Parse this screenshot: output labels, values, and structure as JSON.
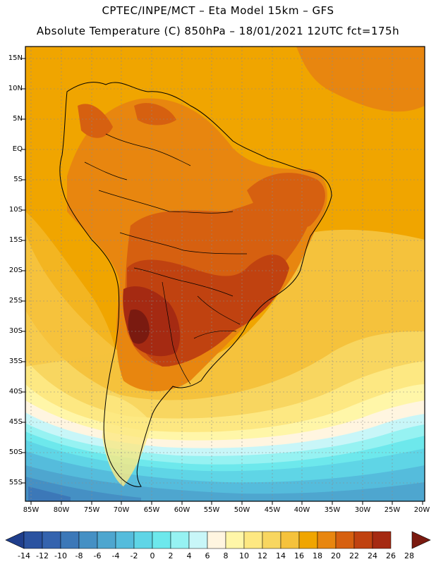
{
  "header": {
    "line1": "CPTEC/INPE/MCT –  Eta Model 15km – GFS",
    "line2": "Absolute Temperature (C) 850hPa – 18/01/2021 12UTC fct=175h"
  },
  "map": {
    "lat_labels": [
      "15N",
      "10N",
      "5N",
      "EQ",
      "5S",
      "10S",
      "15S",
      "20S",
      "25S",
      "30S",
      "35S",
      "40S",
      "45S",
      "50S",
      "55S"
    ],
    "lon_labels": [
      "85W",
      "80W",
      "75W",
      "70W",
      "65W",
      "60W",
      "55W",
      "50W",
      "45W",
      "40W",
      "35W",
      "30W",
      "25W",
      "20W"
    ]
  },
  "colorbar": {
    "labels": [
      "-14",
      "-12",
      "-10",
      "-8",
      "-6",
      "-4",
      "-2",
      "0",
      "2",
      "4",
      "6",
      "8",
      "10",
      "12",
      "14",
      "16",
      "18",
      "20",
      "22",
      "24",
      "26",
      "28"
    ],
    "colors": [
      "#1f3e8c",
      "#2a52a0",
      "#3463ae",
      "#3c78b8",
      "#4590c4",
      "#4ea6cf",
      "#55bcdc",
      "#5fd5e6",
      "#6de8ec",
      "#96f2f2",
      "#c8f6f8",
      "#fff5e0",
      "#fff6a8",
      "#fde882",
      "#f8d660",
      "#f5c23c",
      "#f0a500",
      "#e8860f",
      "#d66010",
      "#c04210",
      "#a52a12",
      "#7a1a10"
    ]
  }
}
